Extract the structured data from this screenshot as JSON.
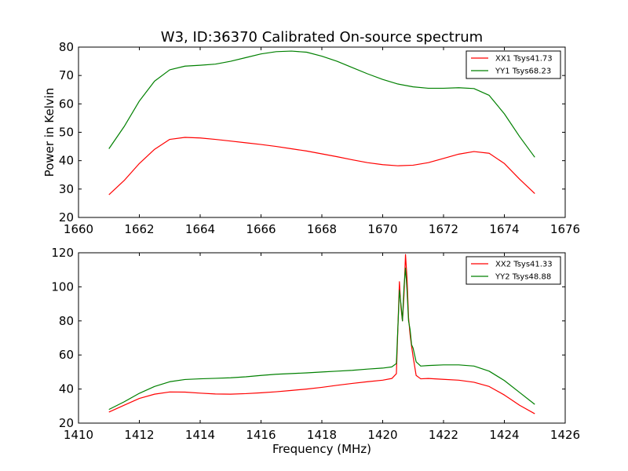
{
  "figure": {
    "title": "W3, ID:36370 Calibrated On-source spectrum"
  },
  "chart_data": [
    {
      "type": "line",
      "title": "W3, ID:36370 Calibrated On-source spectrum",
      "xlabel": "",
      "ylabel": "Power in Kelvin",
      "xlim": [
        1660,
        1676
      ],
      "ylim": [
        20,
        80
      ],
      "xticks": [
        1660,
        1662,
        1664,
        1666,
        1668,
        1670,
        1672,
        1674,
        1676
      ],
      "yticks": [
        20,
        30,
        40,
        50,
        60,
        70,
        80
      ],
      "legend_position": "top-right",
      "grid": false,
      "series": [
        {
          "name": "XX1 Tsys41.73",
          "color": "#ff0000",
          "x": [
            1661.0,
            1661.5,
            1662.0,
            1662.5,
            1663.0,
            1663.5,
            1664.0,
            1664.5,
            1665.0,
            1665.5,
            1666.0,
            1666.5,
            1667.0,
            1667.5,
            1668.0,
            1668.5,
            1669.0,
            1669.5,
            1670.0,
            1670.5,
            1671.0,
            1671.5,
            1672.0,
            1672.5,
            1673.0,
            1673.5,
            1674.0,
            1674.5,
            1675.0
          ],
          "y": [
            28.0,
            33.0,
            39.0,
            44.0,
            47.5,
            48.2,
            48.0,
            47.5,
            46.9,
            46.3,
            45.7,
            45.0,
            44.2,
            43.4,
            42.4,
            41.4,
            40.3,
            39.3,
            38.6,
            38.2,
            38.4,
            39.3,
            40.8,
            42.3,
            43.2,
            42.6,
            39.0,
            33.5,
            28.4
          ]
        },
        {
          "name": "YY1 Tsys68.23",
          "color": "#008000",
          "x": [
            1661.0,
            1661.5,
            1662.0,
            1662.5,
            1663.0,
            1663.5,
            1664.0,
            1664.5,
            1665.0,
            1665.5,
            1666.0,
            1666.5,
            1667.0,
            1667.5,
            1668.0,
            1668.5,
            1669.0,
            1669.5,
            1670.0,
            1670.5,
            1671.0,
            1671.5,
            1672.0,
            1672.5,
            1673.0,
            1673.5,
            1674.0,
            1674.5,
            1675.0
          ],
          "y": [
            44.2,
            52.0,
            61.0,
            68.0,
            72.0,
            73.3,
            73.6,
            74.0,
            75.0,
            76.3,
            77.6,
            78.4,
            78.6,
            78.2,
            76.8,
            75.0,
            72.8,
            70.6,
            68.6,
            67.0,
            66.0,
            65.5,
            65.5,
            65.7,
            65.4,
            63.0,
            56.5,
            48.5,
            41.2
          ]
        }
      ]
    },
    {
      "type": "line",
      "title": "",
      "xlabel": "Frequency (MHz)",
      "ylabel": "",
      "xlim": [
        1410,
        1426
      ],
      "ylim": [
        20,
        120
      ],
      "xticks": [
        1410,
        1412,
        1414,
        1416,
        1418,
        1420,
        1422,
        1424,
        1426
      ],
      "yticks": [
        20,
        40,
        60,
        80,
        100,
        120
      ],
      "legend_position": "top-right",
      "grid": false,
      "series": [
        {
          "name": "XX2 Tsys41.33",
          "color": "#ff0000",
          "x": [
            1411.0,
            1411.5,
            1412.0,
            1412.5,
            1413.0,
            1413.5,
            1414.0,
            1414.5,
            1415.0,
            1415.5,
            1416.0,
            1416.5,
            1417.0,
            1417.5,
            1418.0,
            1418.5,
            1419.0,
            1419.5,
            1420.0,
            1420.3,
            1420.45,
            1420.55,
            1420.6,
            1420.65,
            1420.7,
            1420.75,
            1420.8,
            1420.85,
            1420.9,
            1420.95,
            1421.0,
            1421.1,
            1421.25,
            1421.5,
            1422.0,
            1422.5,
            1423.0,
            1423.5,
            1424.0,
            1424.5,
            1425.0
          ],
          "y": [
            26.5,
            30.5,
            34.5,
            37.0,
            38.3,
            38.2,
            37.6,
            37.1,
            37.0,
            37.3,
            37.8,
            38.4,
            39.2,
            40.0,
            41.0,
            42.2,
            43.3,
            44.3,
            45.2,
            46.2,
            49.0,
            103.0,
            88.0,
            80.0,
            95.0,
            119.0,
            105.0,
            82.0,
            72.0,
            65.0,
            59.0,
            48.0,
            46.0,
            46.2,
            45.7,
            45.2,
            44.0,
            41.5,
            36.5,
            30.5,
            25.5
          ]
        },
        {
          "name": "YY2 Tsys48.88",
          "color": "#008000",
          "x": [
            1411.0,
            1411.5,
            1412.0,
            1412.5,
            1413.0,
            1413.5,
            1414.0,
            1414.5,
            1415.0,
            1415.5,
            1416.0,
            1416.5,
            1417.0,
            1417.5,
            1418.0,
            1418.5,
            1419.0,
            1419.5,
            1420.0,
            1420.3,
            1420.45,
            1420.55,
            1420.6,
            1420.65,
            1420.7,
            1420.75,
            1420.8,
            1420.85,
            1420.9,
            1420.95,
            1421.0,
            1421.1,
            1421.25,
            1421.5,
            1422.0,
            1422.5,
            1423.0,
            1423.5,
            1424.0,
            1424.5,
            1425.0
          ],
          "y": [
            28.0,
            32.5,
            37.5,
            41.5,
            44.3,
            45.6,
            46.0,
            46.3,
            46.6,
            47.2,
            48.0,
            48.7,
            49.1,
            49.5,
            50.0,
            50.5,
            51.0,
            51.7,
            52.3,
            53.0,
            55.0,
            98.0,
            90.0,
            80.0,
            100.0,
            111.0,
            98.0,
            80.0,
            75.0,
            66.0,
            64.0,
            56.0,
            53.5,
            53.8,
            54.2,
            54.2,
            53.5,
            50.5,
            45.0,
            38.0,
            31.0
          ]
        }
      ]
    }
  ]
}
